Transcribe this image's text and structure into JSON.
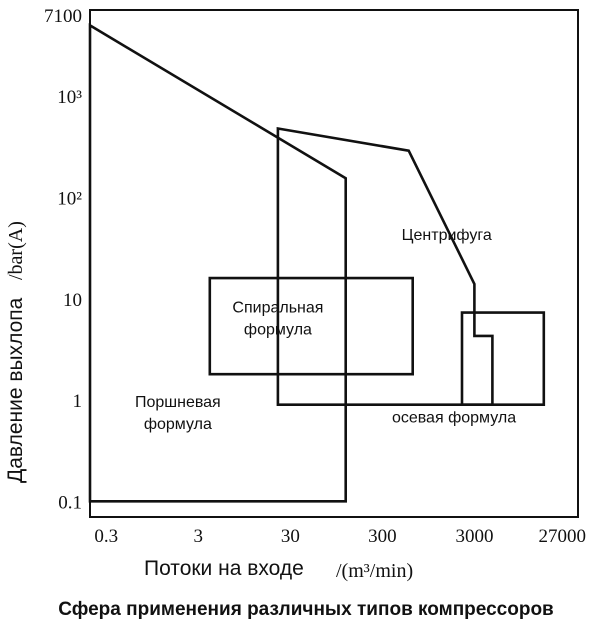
{
  "chart_data": {
    "type": "line",
    "title": "Сфера применения различных типов компрессоров",
    "xlabel": "Потоки на входе",
    "xunit": "/(m³/min)",
    "ylabel": "Давление выхлопа",
    "yunit": "/bar(A)",
    "xscale": "log",
    "yscale": "log",
    "xlim": [
      0.2,
      40000
    ],
    "ylim": [
      0.07,
      7100
    ],
    "grid": false,
    "xticks": [
      {
        "value": 0.3,
        "label": "0.3"
      },
      {
        "value": 3,
        "label": "3"
      },
      {
        "value": 30,
        "label": "30"
      },
      {
        "value": 300,
        "label": "300"
      },
      {
        "value": 3000,
        "label": "3000"
      },
      {
        "value": 27000,
        "label": "27000"
      }
    ],
    "yticks": [
      {
        "value": 0.1,
        "label": "0.1"
      },
      {
        "value": 1,
        "label": "1"
      },
      {
        "value": 10,
        "label": "10"
      },
      {
        "value": 100,
        "label": "10²"
      },
      {
        "value": 1000,
        "label": "10³"
      },
      {
        "value": 7100,
        "label": "7100"
      }
    ],
    "series": [
      {
        "name": "Поршневая формула",
        "polygon": [
          [
            0.2,
            5000
          ],
          [
            120,
            155
          ],
          [
            120,
            0.1
          ],
          [
            0.2,
            0.1
          ]
        ]
      },
      {
        "name": "Центрифуга",
        "polygon": [
          [
            22,
            480
          ],
          [
            580,
            290
          ],
          [
            3000,
            14
          ],
          [
            3000,
            4.3
          ],
          [
            4700,
            4.3
          ],
          [
            4700,
            0.9
          ],
          [
            22,
            0.9
          ]
        ]
      },
      {
        "name": "Спиральная формула",
        "polygon": [
          [
            4,
            16
          ],
          [
            640,
            16
          ],
          [
            640,
            1.8
          ],
          [
            4,
            1.8
          ]
        ]
      },
      {
        "name": "осевая формула",
        "polygon": [
          [
            2200,
            7.3
          ],
          [
            17000,
            7.3
          ],
          [
            17000,
            0.9
          ],
          [
            2200,
            0.9
          ]
        ]
      }
    ],
    "annotations": [
      {
        "name": "centrifuge",
        "text": "Центрифуга",
        "x": 1500,
        "y": 38
      },
      {
        "name": "scroll",
        "lines": [
          "Спиральная",
          "формула"
        ],
        "x": 22,
        "y": 7.3
      },
      {
        "name": "piston",
        "lines": [
          "Поршневая",
          "формула"
        ],
        "x": 1.8,
        "y": 0.85
      },
      {
        "name": "axial",
        "text": "осевая формула",
        "x": 1800,
        "y": 0.6
      }
    ]
  }
}
